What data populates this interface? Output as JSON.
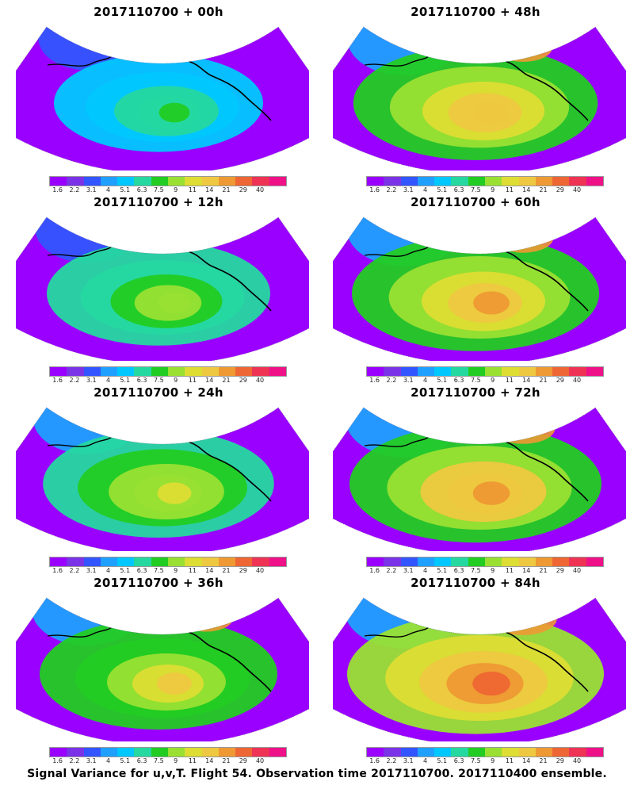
{
  "panels": [
    {
      "title": "2017110700 + 00h",
      "level": 0.45
    },
    {
      "title": "2017110700 + 48h",
      "level": 0.82
    },
    {
      "title": "2017110700 + 12h",
      "level": 0.6
    },
    {
      "title": "2017110700 + 60h",
      "level": 0.85
    },
    {
      "title": "2017110700 + 24h",
      "level": 0.68
    },
    {
      "title": "2017110700 + 72h",
      "level": 0.9
    },
    {
      "title": "2017110700 + 36h",
      "level": 0.75
    },
    {
      "title": "2017110700 + 84h",
      "level": 0.95
    }
  ],
  "colorbar": {
    "labels": [
      "1.6",
      "2.2",
      "3.1",
      "4",
      "5.1",
      "6.3",
      "7.5",
      "9",
      "11",
      "14",
      "21",
      "29",
      "40"
    ],
    "colors": [
      "#9900ff",
      "#7a33e6",
      "#3355ff",
      "#1fa0ff",
      "#00c8ff",
      "#25d8a0",
      "#22cc22",
      "#99e033",
      "#dddd33",
      "#eec840",
      "#ee9933",
      "#ee6633",
      "#ee3355",
      "#ee1188"
    ]
  },
  "footer": "Signal Variance for u,v,T. Flight 54. Observation time 2017110700. 2017110400 ensemble."
}
